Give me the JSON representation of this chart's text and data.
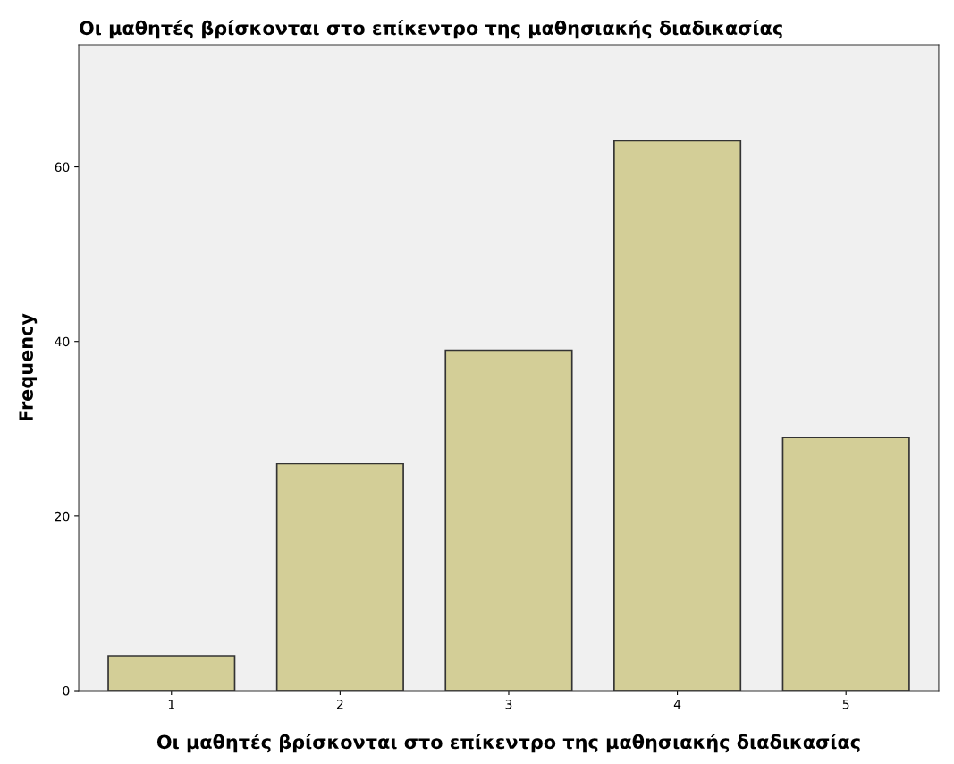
{
  "chart_data": {
    "type": "bar",
    "title": "Οι μαθητές βρίσκονται στο επίκεντρο της μαθησιακής διαδικασίας",
    "xlabel": "Οι μαθητές βρίσκονται στο επίκεντρο της μαθησιακής διαδικασίας",
    "ylabel": "Frequency",
    "categories": [
      "1",
      "2",
      "3",
      "4",
      "5"
    ],
    "values": [
      4,
      26,
      39,
      63,
      29
    ],
    "color": "#d3ce97",
    "ylim": [
      0,
      74
    ],
    "yticks": [
      0,
      20,
      40,
      60
    ],
    "grid": false
  }
}
